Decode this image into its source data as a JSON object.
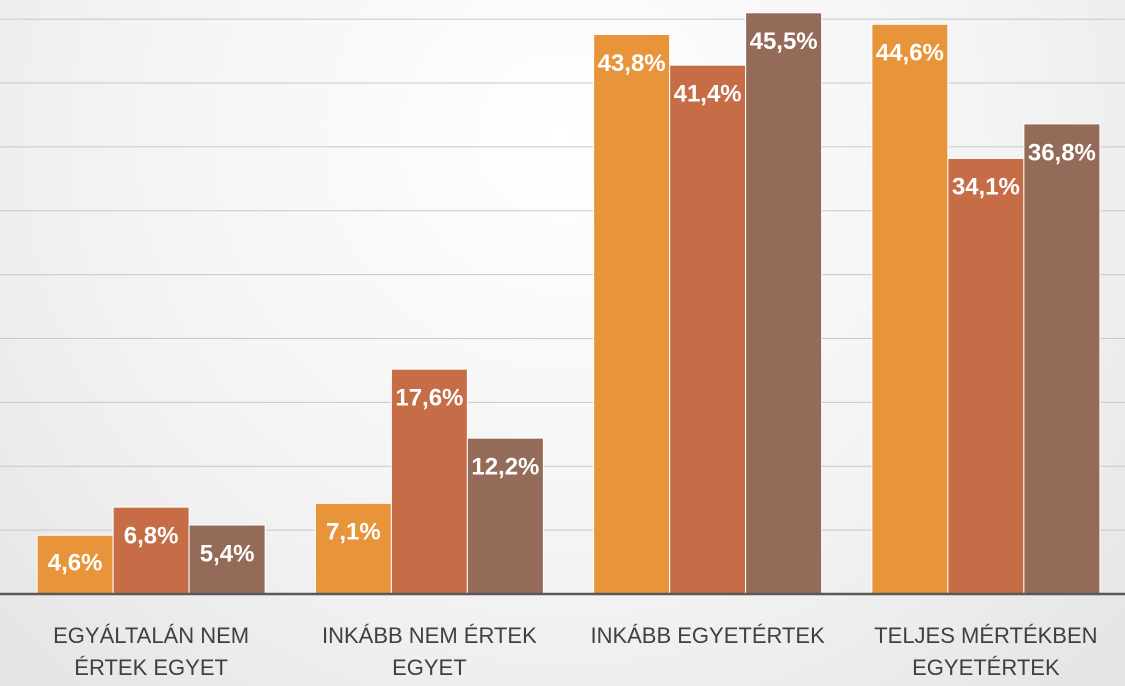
{
  "chart_data": {
    "type": "bar",
    "categories": [
      "EGYÁLTALÁN NEM ÉRTEK EGYET",
      "INKÁBB NEM ÉRTEK EGYET",
      "INKÁBB EGYETÉRTEK",
      "TELJES MÉRTÉKBEN EGYETÉRTEK"
    ],
    "series": [
      {
        "color": "#e8943a",
        "values": [
          4.6,
          7.1,
          43.8,
          44.6
        ],
        "value_labels": [
          "4,6%",
          "7,1%",
          "43,8%",
          "44,6%"
        ]
      },
      {
        "color": "#c66d47",
        "values": [
          6.8,
          17.6,
          41.4,
          34.1
        ],
        "value_labels": [
          "6,8%",
          "17,6%",
          "41,4%",
          "34,1%"
        ]
      },
      {
        "color": "#946a58",
        "values": [
          5.4,
          12.2,
          45.5,
          36.8
        ],
        "value_labels": [
          "5,4%",
          "12,2%",
          "45,5%",
          "36,8%"
        ]
      }
    ],
    "ylim": [
      0,
      46.5
    ],
    "yticks": [
      0,
      5,
      10,
      15,
      20,
      25,
      30,
      35,
      40,
      45
    ],
    "grid": true
  }
}
